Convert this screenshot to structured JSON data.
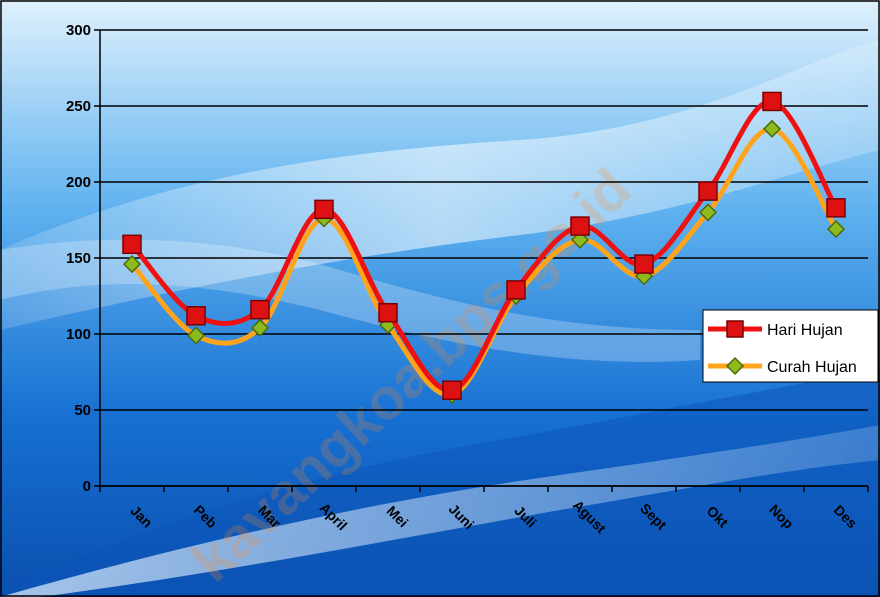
{
  "watermark": "kavangkoa.bps.go.id",
  "colors": {
    "hari_hujan_line": "#ee1111",
    "hari_hujan_marker": "#dd1111",
    "curah_hujan_line": "#ffa41a",
    "curah_hujan_marker": "#8dbb1e",
    "background_dark": "#0a55b8",
    "background_light": "#bfe3fb"
  },
  "chart_data": {
    "type": "line",
    "smooth": true,
    "title": "",
    "xlabel": "",
    "ylabel": "",
    "categories": [
      "Jan",
      "Peb",
      "Mar",
      "April",
      "Mei",
      "Juni",
      "Juli",
      "Agust",
      "Sept",
      "Okt",
      "Nop",
      "Des"
    ],
    "ylim": [
      0,
      300
    ],
    "yticks": [
      0,
      50,
      100,
      150,
      200,
      250,
      300
    ],
    "grid": true,
    "legend_position": "right",
    "series": [
      {
        "name": "Hari Hujan",
        "marker": "square",
        "values": [
          159,
          112,
          116,
          182,
          114,
          63,
          129,
          171,
          146,
          194,
          253,
          183
        ]
      },
      {
        "name": "Curah Hujan",
        "marker": "diamond",
        "values": [
          146,
          99,
          104,
          176,
          106,
          60,
          125,
          162,
          138,
          180,
          235,
          169
        ]
      }
    ]
  }
}
